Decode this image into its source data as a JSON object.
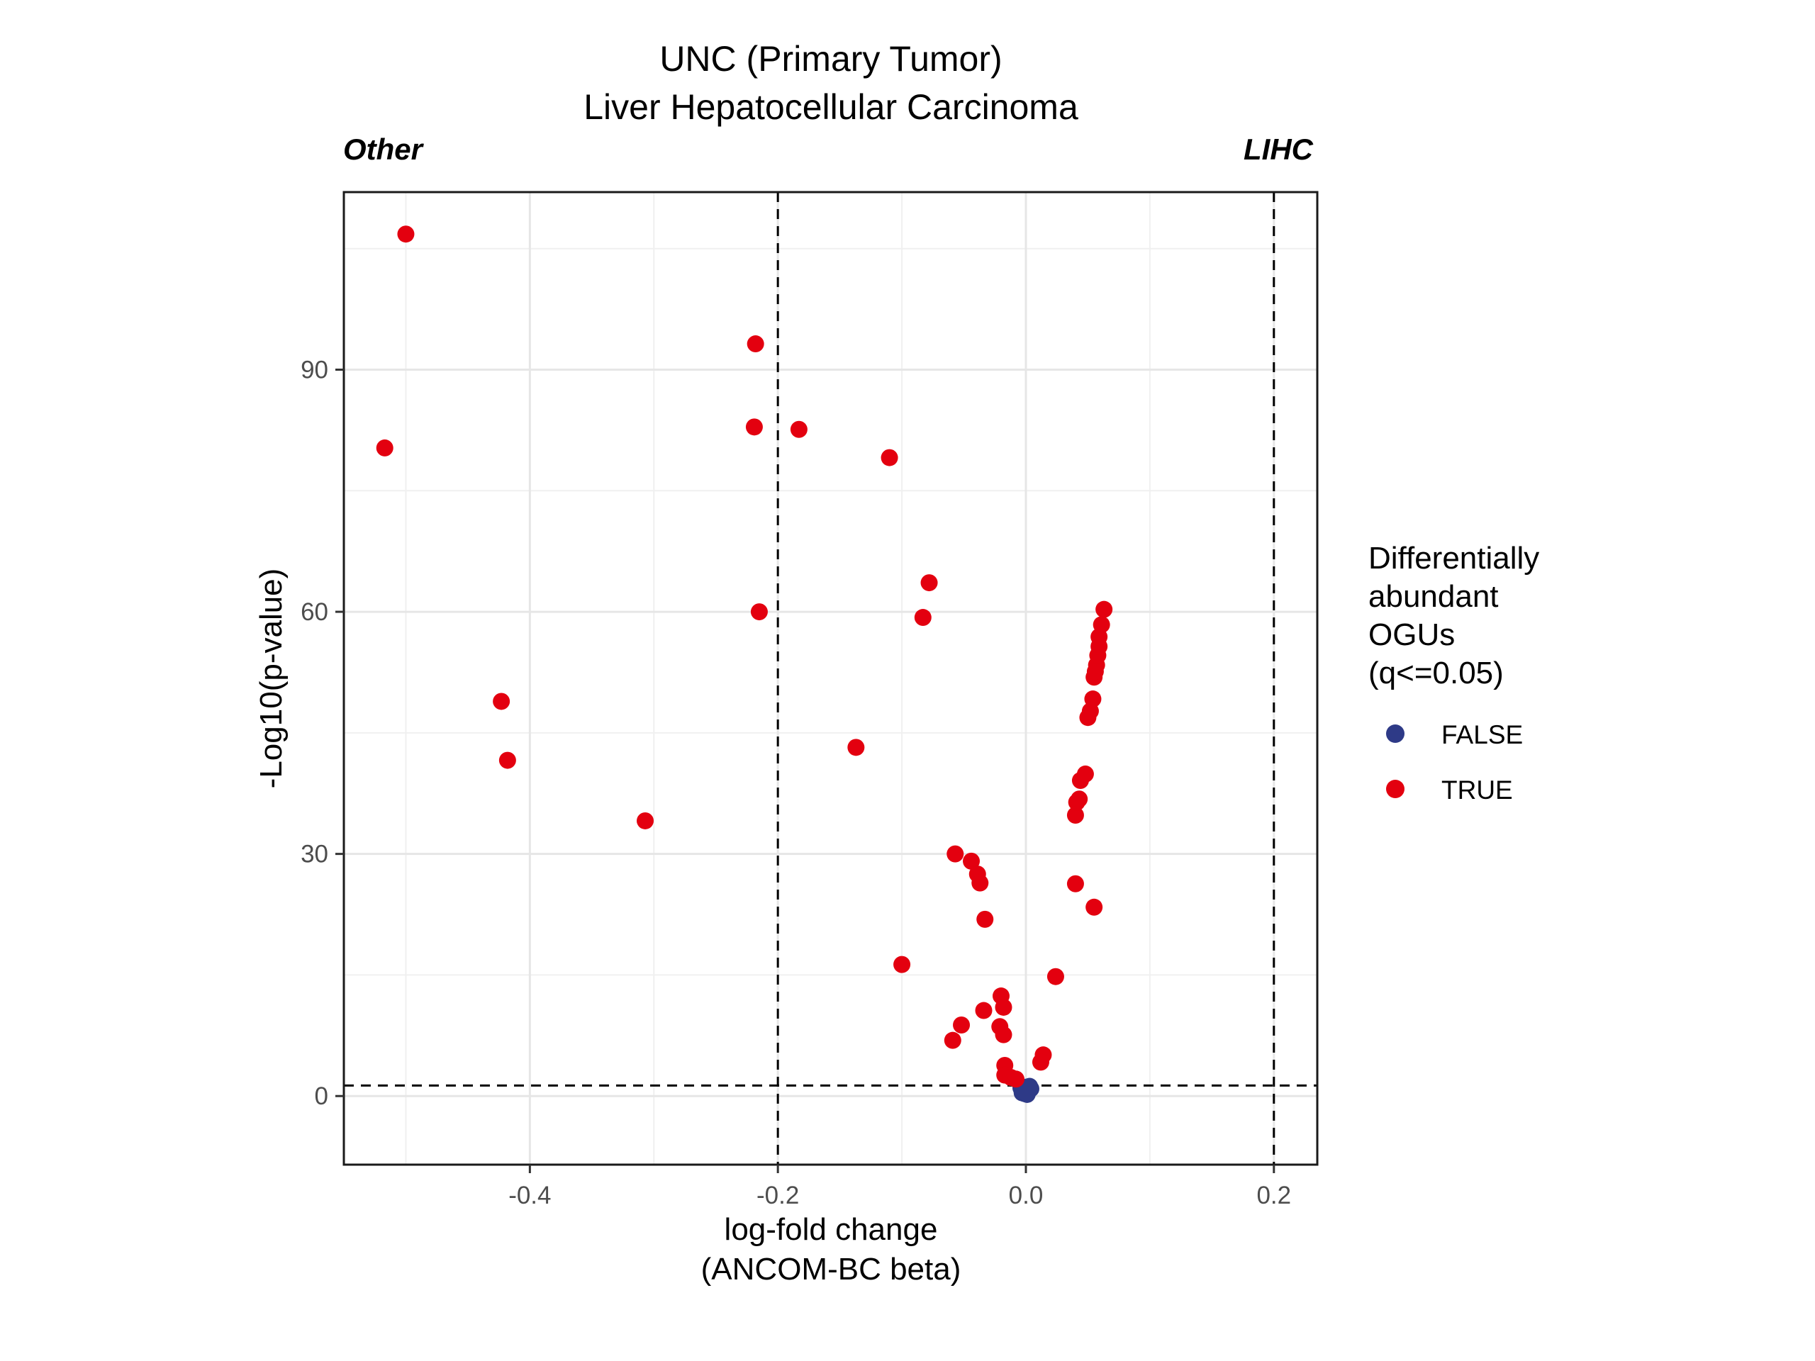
{
  "chart_data": {
    "type": "scatter",
    "title": "UNC (Primary Tumor)",
    "subtitle": "Liver Hepatocellular Carcinoma",
    "corner_label_left": "Other",
    "corner_label_right": "LIHC",
    "xlabel_line1": "log-fold change",
    "xlabel_line2": "(ANCOM-BC beta)",
    "ylabel": "-Log10(p-value)",
    "xlim": [
      -0.55,
      0.235
    ],
    "ylim": [
      -8.5,
      112
    ],
    "x_ticks": [
      -0.4,
      -0.2,
      0.0,
      0.2
    ],
    "x_tick_labels": [
      "-0.4",
      "-0.2",
      "0.0",
      "0.2"
    ],
    "y_ticks": [
      0,
      30,
      60,
      90
    ],
    "y_tick_labels": [
      "0",
      "30",
      "60",
      "90"
    ],
    "x_minor": [
      -0.5,
      -0.3,
      -0.1,
      0.1
    ],
    "y_minor": [
      15,
      45,
      75,
      105
    ],
    "grid": true,
    "vlines": [
      -0.2,
      0.2
    ],
    "hline": 1.3,
    "legend": {
      "title_lines": [
        "Differentially",
        "abundant",
        "OGUs",
        "(q<=0.05)"
      ],
      "placement": "right",
      "entries": [
        {
          "label": "FALSE",
          "color": "#2e3a87"
        },
        {
          "label": "TRUE",
          "color": "#e3000f"
        }
      ]
    },
    "series": [
      {
        "name": "FALSE",
        "color": "#2e3a87",
        "points": [
          [
            0.003,
            1.2
          ],
          [
            -0.002,
            0.8
          ],
          [
            0.0,
            0.5
          ],
          [
            0.001,
            0.2
          ],
          [
            -0.004,
            1.0
          ],
          [
            0.002,
            0.6
          ],
          [
            -0.001,
            0.3
          ],
          [
            0.004,
            0.9
          ],
          [
            -0.003,
            0.4
          ],
          [
            0.0,
            1.1
          ]
        ]
      },
      {
        "name": "TRUE",
        "color": "#e3000f",
        "points": [
          [
            -0.5,
            106.8
          ],
          [
            -0.517,
            80.3
          ],
          [
            -0.423,
            48.9
          ],
          [
            -0.418,
            41.6
          ],
          [
            -0.307,
            34.1
          ],
          [
            -0.218,
            93.2
          ],
          [
            -0.219,
            82.9
          ],
          [
            -0.215,
            60.0
          ],
          [
            -0.183,
            82.6
          ],
          [
            -0.11,
            79.1
          ],
          [
            -0.137,
            43.2
          ],
          [
            -0.078,
            63.6
          ],
          [
            -0.083,
            59.3
          ],
          [
            -0.1,
            16.3
          ],
          [
            -0.057,
            30.0
          ],
          [
            -0.044,
            29.1
          ],
          [
            -0.039,
            27.5
          ],
          [
            -0.037,
            26.4
          ],
          [
            -0.033,
            21.9
          ],
          [
            -0.02,
            12.4
          ],
          [
            -0.018,
            11.0
          ],
          [
            -0.034,
            10.6
          ],
          [
            -0.052,
            8.8
          ],
          [
            -0.021,
            8.6
          ],
          [
            -0.018,
            7.6
          ],
          [
            -0.059,
            6.9
          ],
          [
            -0.017,
            3.8
          ],
          [
            -0.017,
            2.6
          ],
          [
            -0.012,
            2.3
          ],
          [
            -0.008,
            2.1
          ],
          [
            0.014,
            5.1
          ],
          [
            0.012,
            4.2
          ],
          [
            0.024,
            14.8
          ],
          [
            0.04,
            26.3
          ],
          [
            0.055,
            23.4
          ],
          [
            0.04,
            34.8
          ],
          [
            0.041,
            36.4
          ],
          [
            0.043,
            36.8
          ],
          [
            0.044,
            39.1
          ],
          [
            0.048,
            39.9
          ],
          [
            0.05,
            46.9
          ],
          [
            0.052,
            47.7
          ],
          [
            0.054,
            49.2
          ],
          [
            0.055,
            51.9
          ],
          [
            0.056,
            52.6
          ],
          [
            0.057,
            53.4
          ],
          [
            0.058,
            54.6
          ],
          [
            0.059,
            55.7
          ],
          [
            0.059,
            56.9
          ],
          [
            0.061,
            58.4
          ],
          [
            0.063,
            60.3
          ]
        ]
      }
    ]
  }
}
